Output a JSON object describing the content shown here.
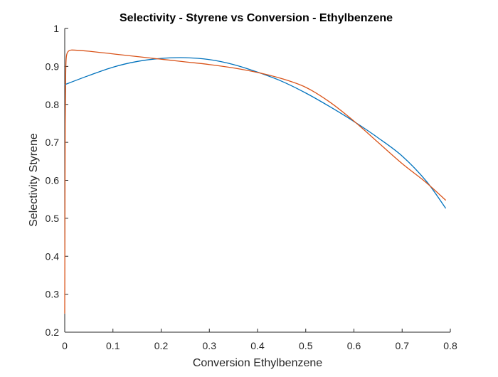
{
  "chart_data": {
    "type": "line",
    "title": "Selectivity - Styrene vs Conversion - Ethylbenzene",
    "xlabel": "Conversion Ethylbenzene",
    "ylabel": "Selectivity  Styrene",
    "xlim": [
      0,
      0.8
    ],
    "ylim": [
      0.2,
      1.0
    ],
    "xticks": [
      0,
      0.1,
      0.2,
      0.3,
      0.4,
      0.5,
      0.6,
      0.7,
      0.8
    ],
    "yticks": [
      0.2,
      0.3,
      0.4,
      0.5,
      0.6,
      0.7,
      0.8,
      0.9,
      1.0
    ],
    "xtick_labels": [
      "0",
      "0.1",
      "0.2",
      "0.3",
      "0.4",
      "0.5",
      "0.6",
      "0.7",
      "0.8"
    ],
    "ytick_labels": [
      "0.2",
      "0.3",
      "0.4",
      "0.5",
      "0.6",
      "0.7",
      "0.8",
      "0.9",
      "1"
    ],
    "grid": false,
    "series": [
      {
        "color": "#0072BD",
        "x": [
          0,
          0.05,
          0.1,
          0.15,
          0.2,
          0.25,
          0.3,
          0.35,
          0.4,
          0.45,
          0.5,
          0.55,
          0.6,
          0.65,
          0.7,
          0.75,
          0.79
        ],
        "y": [
          0.852,
          0.876,
          0.898,
          0.913,
          0.921,
          0.923,
          0.918,
          0.905,
          0.885,
          0.861,
          0.83,
          0.794,
          0.755,
          0.712,
          0.664,
          0.598,
          0.527
        ]
      },
      {
        "color": "#D95319",
        "x": [
          0,
          0.0005,
          0.001,
          0.002,
          0.003,
          0.005,
          0.01,
          0.02,
          0.05,
          0.1,
          0.15,
          0.2,
          0.25,
          0.3,
          0.35,
          0.4,
          0.45,
          0.5,
          0.55,
          0.6,
          0.65,
          0.7,
          0.75,
          0.79
        ],
        "y": [
          0.25,
          0.55,
          0.75,
          0.88,
          0.92,
          0.935,
          0.942,
          0.943,
          0.94,
          0.933,
          0.926,
          0.919,
          0.912,
          0.905,
          0.896,
          0.884,
          0.868,
          0.845,
          0.806,
          0.756,
          0.7,
          0.644,
          0.594,
          0.548
        ]
      }
    ]
  }
}
